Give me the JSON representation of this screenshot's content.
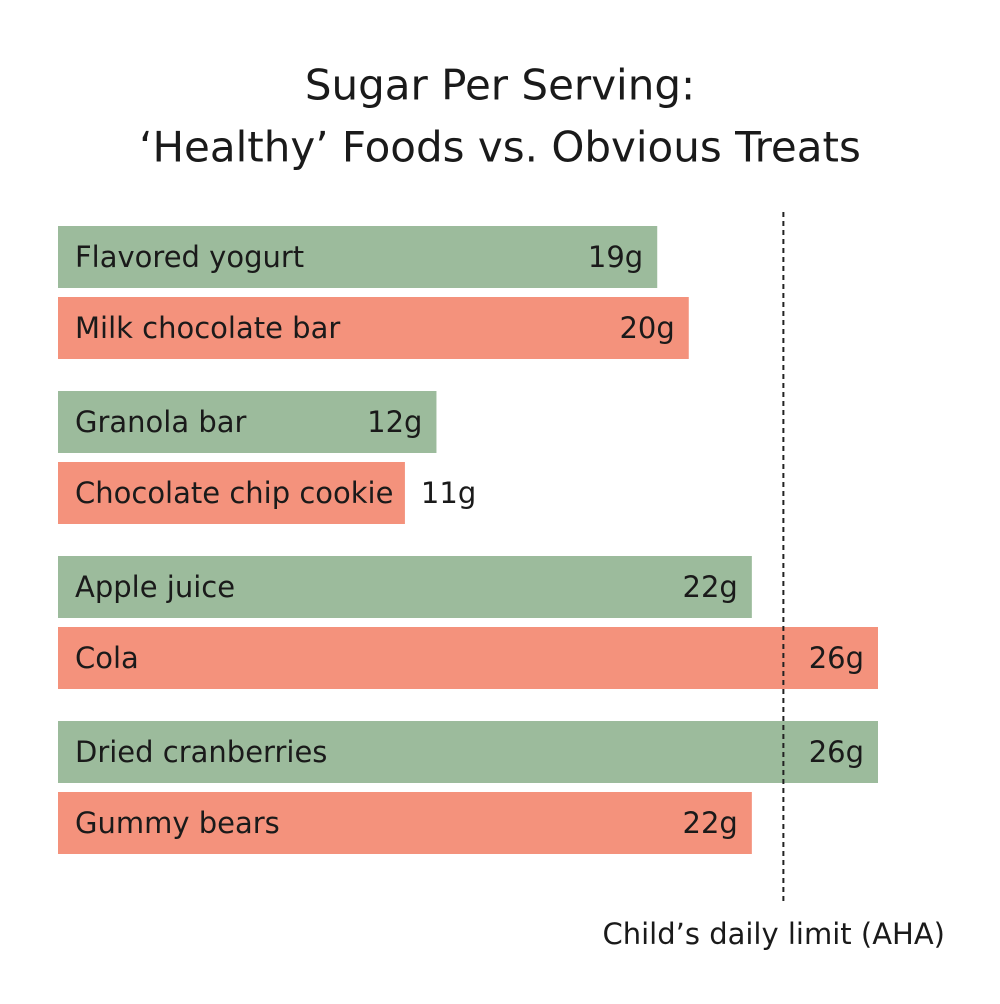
{
  "chart_data": {
    "type": "bar",
    "orientation": "horizontal",
    "title": [
      "Sugar Per Serving:",
      "‘Healthy’ Foods vs. Obvious Treats"
    ],
    "categories": [
      "Flavored yogurt",
      "Milk chocolate bar",
      "Granola bar",
      "Chocolate chip cookie",
      "Apple juice",
      "Cola",
      "Dried cranberries",
      "Gummy bears"
    ],
    "values": [
      19,
      20,
      12,
      11,
      22,
      26,
      26,
      22
    ],
    "value_labels": [
      "19g",
      "20g",
      "12g",
      "11g",
      "22g",
      "26g",
      "26g",
      "22g"
    ],
    "colors": [
      "#9cbb9c",
      "#f4927c",
      "#9cbb9c",
      "#f4927c",
      "#9cbb9c",
      "#f4927c",
      "#9cbb9c",
      "#f4927c"
    ],
    "reference_line": {
      "value": 23,
      "label": "Child’s daily limit (AHA)"
    }
  }
}
